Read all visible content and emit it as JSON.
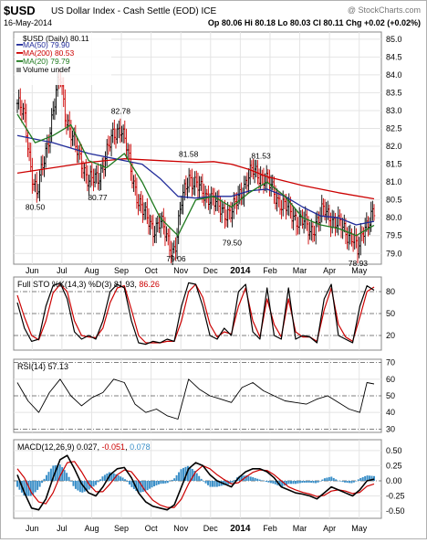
{
  "header": {
    "symbol": "$USD",
    "name": "US Dollar Index - Cash Settle (EOD) ICE",
    "date": "16-May-2014",
    "quote": "Op 80.06 Hi 80.18 Lo 80.03 Cl 80.11 Chg +0.02 (+0.02%)",
    "watermark": "@ StockCharts.com",
    "chg_color": "#1a7a1a"
  },
  "colors": {
    "up": "#000000",
    "down": "#cc0000",
    "ma50": "#1f2a99",
    "ma200": "#cc0000",
    "ma20": "#1f7a1f",
    "stoK": "#000000",
    "stoD": "#cc0000",
    "macd": "#000000",
    "signal": "#cc0000",
    "hist": "#3a8fc8"
  },
  "x_labels": [
    "Jun",
    "Jul",
    "Aug",
    "Sep",
    "Oct",
    "Nov",
    "Dec",
    "2014",
    "Feb",
    "Mar",
    "Apr",
    "May"
  ],
  "legend": {
    "price": "$USD (Daily) 80.11",
    "ma50": "MA(50) 79.90",
    "ma200": "MA(200) 80.53",
    "ma20": "MA(20) 79.79",
    "volume": "Volume undef"
  },
  "sto_label": {
    "a": "Full STO %K(14,3) %D(3) 81.93, ",
    "b": "86.26"
  },
  "rsi_label": "RSI(14) 57.13",
  "macd_label": {
    "a": "MACD(12,26,9) 0.027, ",
    "b": "-0.051",
    "c": ", ",
    "d": "0.078"
  },
  "chart_data": [
    {
      "type": "line",
      "title": "$USD (Daily) 80.11",
      "ylim": [
        78.7,
        85.2
      ],
      "yticks": [
        79.0,
        79.5,
        80.0,
        80.5,
        81.0,
        81.5,
        82.0,
        82.5,
        83.0,
        83.5,
        84.0,
        84.5,
        85.0
      ],
      "ytick_labels": [
        "79.0",
        "79.5",
        "80.0",
        "80.5",
        "81.0",
        "81.5",
        "82.0",
        "82.5",
        "83.0",
        "83.5",
        "84.0",
        "84.5",
        "85.0"
      ],
      "annotations": [
        {
          "t": 0.05,
          "value": 80.5,
          "label": "80.50"
        },
        {
          "t": 0.29,
          "value": 82.78,
          "label": "82.78"
        },
        {
          "t": 0.225,
          "value": 80.77,
          "label": "80.77"
        },
        {
          "t": 0.445,
          "value": 79.06,
          "label": "79.06"
        },
        {
          "t": 0.48,
          "value": 81.58,
          "label": "81.58"
        },
        {
          "t": 0.602,
          "value": 79.5,
          "label": "79.50"
        },
        {
          "t": 0.683,
          "value": 81.53,
          "label": "81.53"
        },
        {
          "t": 0.955,
          "value": 78.93,
          "label": "78.93"
        }
      ],
      "close": {
        "t": [
          0.0,
          0.02,
          0.04,
          0.055,
          0.07,
          0.09,
          0.11,
          0.12,
          0.135,
          0.16,
          0.18,
          0.2,
          0.225,
          0.25,
          0.27,
          0.29,
          0.305,
          0.32,
          0.34,
          0.36,
          0.38,
          0.4,
          0.42,
          0.435,
          0.445,
          0.46,
          0.48,
          0.5,
          0.52,
          0.54,
          0.56,
          0.58,
          0.602,
          0.62,
          0.64,
          0.66,
          0.683,
          0.7,
          0.72,
          0.74,
          0.76,
          0.78,
          0.8,
          0.82,
          0.84,
          0.86,
          0.88,
          0.9,
          0.92,
          0.94,
          0.955,
          0.97,
          0.99,
          1.0
        ],
        "v": [
          83.2,
          82.8,
          81.3,
          80.6,
          81.4,
          82.4,
          83.5,
          84.0,
          82.9,
          82.0,
          81.6,
          81.0,
          81.1,
          81.8,
          82.3,
          82.6,
          82.0,
          81.2,
          80.5,
          80.0,
          79.7,
          79.9,
          79.4,
          79.1,
          79.3,
          80.4,
          81.2,
          80.9,
          80.7,
          80.6,
          80.3,
          80.2,
          80.1,
          80.6,
          81.0,
          81.3,
          81.2,
          81.0,
          80.7,
          80.4,
          80.2,
          80.0,
          79.9,
          79.6,
          79.9,
          80.2,
          80.0,
          79.8,
          79.6,
          79.5,
          79.0,
          79.7,
          80.05,
          80.11
        ]
      },
      "ma50": {
        "t": [
          0.0,
          0.1,
          0.2,
          0.3,
          0.35,
          0.4,
          0.45,
          0.5,
          0.55,
          0.6,
          0.65,
          0.7,
          0.75,
          0.8,
          0.85,
          0.9,
          0.95,
          1.0
        ],
        "v": [
          82.3,
          82.1,
          81.8,
          81.6,
          81.5,
          81.1,
          80.6,
          80.55,
          80.6,
          80.6,
          80.75,
          80.8,
          80.6,
          80.3,
          80.05,
          80.0,
          79.8,
          79.9
        ]
      },
      "ma200": {
        "t": [
          0.0,
          0.1,
          0.2,
          0.3,
          0.4,
          0.5,
          0.55,
          0.6,
          0.65,
          0.7,
          0.8,
          0.9,
          1.0
        ],
        "v": [
          81.25,
          81.4,
          81.55,
          81.65,
          81.6,
          81.55,
          81.57,
          81.5,
          81.35,
          81.15,
          80.9,
          80.7,
          80.53
        ]
      },
      "ma20": {
        "t": [
          0.0,
          0.05,
          0.1,
          0.15,
          0.2,
          0.25,
          0.3,
          0.35,
          0.4,
          0.45,
          0.5,
          0.55,
          0.6,
          0.65,
          0.7,
          0.75,
          0.8,
          0.85,
          0.9,
          0.95,
          1.0
        ],
        "v": [
          82.9,
          82.1,
          82.3,
          82.6,
          81.6,
          81.4,
          81.8,
          81.0,
          80.0,
          79.5,
          80.5,
          80.6,
          80.3,
          80.7,
          81.0,
          80.6,
          80.0,
          79.8,
          79.7,
          79.5,
          79.79
        ]
      }
    },
    {
      "type": "line",
      "title": "Full STO %K(14,3) %D(3)",
      "ylim": [
        0,
        100
      ],
      "yticks": [
        20,
        50,
        80
      ],
      "ytick_labels": [
        "20",
        "50",
        "80"
      ],
      "k": {
        "t": [
          0.0,
          0.02,
          0.04,
          0.06,
          0.08,
          0.1,
          0.12,
          0.14,
          0.16,
          0.18,
          0.2,
          0.22,
          0.24,
          0.26,
          0.28,
          0.3,
          0.32,
          0.34,
          0.36,
          0.38,
          0.4,
          0.42,
          0.44,
          0.46,
          0.48,
          0.5,
          0.52,
          0.54,
          0.56,
          0.58,
          0.6,
          0.62,
          0.64,
          0.66,
          0.68,
          0.7,
          0.72,
          0.74,
          0.76,
          0.78,
          0.8,
          0.82,
          0.84,
          0.86,
          0.88,
          0.9,
          0.92,
          0.94,
          0.96,
          0.98,
          1.0
        ],
        "v": [
          65,
          30,
          12,
          15,
          60,
          88,
          92,
          70,
          25,
          15,
          20,
          15,
          40,
          80,
          90,
          85,
          40,
          10,
          8,
          12,
          10,
          15,
          12,
          60,
          92,
          90,
          60,
          20,
          15,
          30,
          20,
          80,
          90,
          25,
          15,
          85,
          20,
          15,
          85,
          15,
          20,
          18,
          10,
          70,
          90,
          20,
          15,
          10,
          60,
          88,
          81.93
        ]
      },
      "d": {
        "t": [
          0.0,
          0.02,
          0.04,
          0.06,
          0.08,
          0.1,
          0.12,
          0.14,
          0.16,
          0.18,
          0.2,
          0.22,
          0.24,
          0.26,
          0.28,
          0.3,
          0.32,
          0.34,
          0.36,
          0.38,
          0.4,
          0.42,
          0.44,
          0.46,
          0.48,
          0.5,
          0.52,
          0.54,
          0.56,
          0.58,
          0.6,
          0.62,
          0.64,
          0.66,
          0.68,
          0.7,
          0.72,
          0.74,
          0.76,
          0.78,
          0.8,
          0.82,
          0.84,
          0.86,
          0.88,
          0.9,
          0.92,
          0.94,
          0.96,
          0.98,
          1.0
        ],
        "v": [
          75,
          45,
          20,
          14,
          40,
          78,
          90,
          80,
          40,
          20,
          18,
          17,
          30,
          65,
          85,
          88,
          55,
          20,
          10,
          10,
          10,
          12,
          12,
          40,
          80,
          90,
          72,
          35,
          18,
          25,
          22,
          60,
          85,
          40,
          18,
          70,
          35,
          18,
          70,
          25,
          18,
          18,
          12,
          55,
          85,
          35,
          18,
          12,
          45,
          80,
          86.26
        ]
      }
    },
    {
      "type": "line",
      "title": "RSI(14)",
      "ylim": [
        28,
        72
      ],
      "yticks": [
        30,
        40,
        50,
        60,
        70
      ],
      "ytick_labels": [
        "30",
        "40",
        "50",
        "60",
        "70"
      ],
      "rsi": {
        "t": [
          0.0,
          0.03,
          0.06,
          0.09,
          0.12,
          0.15,
          0.18,
          0.21,
          0.24,
          0.27,
          0.3,
          0.33,
          0.36,
          0.39,
          0.42,
          0.45,
          0.48,
          0.51,
          0.54,
          0.57,
          0.6,
          0.63,
          0.66,
          0.69,
          0.72,
          0.75,
          0.78,
          0.81,
          0.84,
          0.87,
          0.9,
          0.93,
          0.96,
          0.98,
          1.0
        ],
        "v": [
          58,
          47,
          40,
          52,
          60,
          50,
          44,
          49,
          52,
          60,
          58,
          45,
          40,
          42,
          38,
          36,
          60,
          54,
          50,
          48,
          46,
          55,
          58,
          53,
          50,
          47,
          46,
          45,
          48,
          50,
          46,
          42,
          40,
          58,
          57.13
        ]
      }
    },
    {
      "type": "line",
      "title": "MACD(12,26,9)",
      "ylim": [
        -0.62,
        0.68
      ],
      "yticks": [
        -0.5,
        -0.25,
        0.0,
        0.25,
        0.5
      ],
      "ytick_labels": [
        "-0.50",
        "-0.25",
        "0.00",
        "0.25",
        "0.50"
      ],
      "macd": {
        "t": [
          0.0,
          0.02,
          0.04,
          0.06,
          0.08,
          0.1,
          0.12,
          0.14,
          0.16,
          0.18,
          0.2,
          0.22,
          0.24,
          0.26,
          0.28,
          0.3,
          0.32,
          0.34,
          0.36,
          0.38,
          0.4,
          0.42,
          0.44,
          0.46,
          0.48,
          0.5,
          0.52,
          0.54,
          0.56,
          0.58,
          0.6,
          0.62,
          0.64,
          0.66,
          0.68,
          0.7,
          0.72,
          0.74,
          0.76,
          0.78,
          0.8,
          0.82,
          0.84,
          0.86,
          0.88,
          0.9,
          0.92,
          0.94,
          0.96,
          0.98,
          1.0
        ],
        "v": [
          0.1,
          -0.2,
          -0.45,
          -0.48,
          -0.3,
          0.05,
          0.35,
          0.42,
          0.2,
          -0.05,
          -0.2,
          -0.25,
          -0.1,
          0.1,
          0.2,
          0.22,
          0.05,
          -0.2,
          -0.35,
          -0.42,
          -0.45,
          -0.48,
          -0.4,
          -0.1,
          0.2,
          0.3,
          0.25,
          0.1,
          0.0,
          -0.05,
          -0.1,
          0.05,
          0.15,
          0.2,
          0.2,
          0.15,
          0.05,
          -0.1,
          -0.15,
          -0.2,
          -0.22,
          -0.25,
          -0.3,
          -0.2,
          -0.1,
          -0.15,
          -0.2,
          -0.25,
          -0.15,
          0.0,
          0.027
        ]
      },
      "signal": {
        "t": [
          0.0,
          0.02,
          0.04,
          0.06,
          0.08,
          0.1,
          0.12,
          0.14,
          0.16,
          0.18,
          0.2,
          0.22,
          0.24,
          0.26,
          0.28,
          0.3,
          0.32,
          0.34,
          0.36,
          0.38,
          0.4,
          0.42,
          0.44,
          0.46,
          0.48,
          0.5,
          0.52,
          0.54,
          0.56,
          0.58,
          0.6,
          0.62,
          0.64,
          0.66,
          0.68,
          0.7,
          0.72,
          0.74,
          0.76,
          0.78,
          0.8,
          0.82,
          0.84,
          0.86,
          0.88,
          0.9,
          0.92,
          0.94,
          0.96,
          0.98,
          1.0
        ],
        "v": [
          0.2,
          0.05,
          -0.2,
          -0.35,
          -0.38,
          -0.2,
          0.08,
          0.3,
          0.32,
          0.15,
          -0.05,
          -0.18,
          -0.18,
          -0.05,
          0.1,
          0.18,
          0.15,
          0.0,
          -0.18,
          -0.32,
          -0.4,
          -0.44,
          -0.44,
          -0.3,
          -0.05,
          0.15,
          0.25,
          0.2,
          0.1,
          0.02,
          -0.05,
          -0.03,
          0.06,
          0.14,
          0.18,
          0.17,
          0.1,
          0.0,
          -0.1,
          -0.15,
          -0.19,
          -0.22,
          -0.26,
          -0.24,
          -0.17,
          -0.15,
          -0.17,
          -0.21,
          -0.19,
          -0.09,
          -0.051
        ]
      }
    }
  ]
}
